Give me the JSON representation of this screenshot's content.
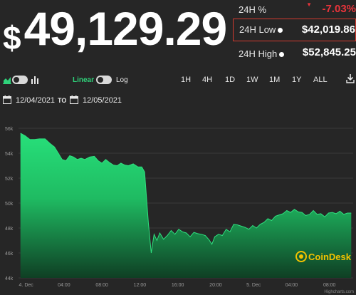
{
  "price": {
    "currency_symbol": "$",
    "value": "49,129.29"
  },
  "stats": {
    "change_label": "24H %",
    "change_value": "-7.03%",
    "low_label": "24H Low",
    "low_value": "$42,019.86",
    "high_label": "24H High",
    "high_value": "$52,845.25"
  },
  "controls": {
    "linear_label": "Linear",
    "log_label": "Log",
    "ranges": [
      "1H",
      "4H",
      "1D",
      "1W",
      "1M",
      "1Y",
      "ALL"
    ]
  },
  "dates": {
    "from": "12/04/2021",
    "to_label": "TO",
    "to": "12/05/2021"
  },
  "colors": {
    "accent": "#2fd27a",
    "negative": "#e8343b",
    "highlight_border": "#d23a2f",
    "background": "#262626"
  },
  "icons": [
    "area-chart-icon",
    "bar-chart-icon",
    "calendar-icon",
    "download-icon"
  ],
  "chart_data": {
    "type": "area",
    "y_tick_labels": [
      "56k",
      "54k",
      "52k",
      "50k",
      "48k",
      "46k",
      "44k"
    ],
    "x_tick_labels": [
      "4. Dec",
      "04:00",
      "08:00",
      "12:00",
      "16:00",
      "20:00",
      "5. Dec",
      "04:00",
      "08:00"
    ],
    "x_hours": [
      0,
      4,
      8,
      12,
      16,
      20,
      24,
      28,
      32
    ],
    "ylim": [
      44000,
      56000
    ],
    "xlim": [
      -0.8,
      34.5
    ],
    "grid": true,
    "watermark": "CoinDesk",
    "credits": "Highcharts.com",
    "series": [
      {
        "x": [
          -0.6,
          -0.1,
          0.4,
          0.9,
          1.4,
          2.0,
          2.5,
          3.0,
          3.4,
          3.8,
          4.2,
          4.6,
          5.0,
          5.4,
          5.8,
          6.2,
          6.7,
          7.2,
          7.6,
          8.0,
          8.4,
          8.8,
          9.2,
          9.6,
          10.0,
          10.4,
          10.8,
          11.3,
          11.8,
          12.2,
          12.5,
          12.7,
          12.9,
          13.2,
          13.5,
          13.8,
          14.1,
          14.5,
          14.9,
          15.3,
          15.7,
          16.1,
          16.5,
          16.9,
          17.3,
          17.7,
          18.1,
          18.5,
          18.9,
          19.3,
          19.6,
          19.9,
          20.3,
          20.7,
          21.1,
          21.5,
          21.9,
          22.3,
          22.7,
          23.1,
          23.5,
          23.9,
          24.3,
          24.7,
          25.1,
          25.5,
          25.9,
          26.3,
          26.7,
          27.1,
          27.5,
          27.9,
          28.3,
          28.7,
          29.1,
          29.5,
          29.9,
          30.3,
          30.7,
          31.1,
          31.5,
          31.9,
          32.3,
          32.7,
          33.1,
          33.5,
          33.9,
          34.3
        ],
        "values": [
          55600,
          55400,
          55100,
          55100,
          55150,
          55150,
          54800,
          54500,
          54000,
          53500,
          53400,
          53800,
          53700,
          53500,
          53600,
          53500,
          53700,
          53750,
          53400,
          53200,
          53500,
          53250,
          53050,
          53000,
          53200,
          53050,
          53000,
          53150,
          52900,
          52900,
          52500,
          50500,
          48400,
          46000,
          47500,
          47000,
          47600,
          47100,
          47400,
          47800,
          47500,
          47900,
          47700,
          47600,
          47300,
          47650,
          47550,
          47500,
          47400,
          47050,
          46700,
          47300,
          47500,
          47400,
          47900,
          47700,
          48300,
          48250,
          48150,
          48050,
          47900,
          48200,
          48000,
          48300,
          48450,
          48750,
          48600,
          48950,
          49050,
          49150,
          49400,
          49250,
          49500,
          49300,
          49250,
          49000,
          49100,
          49400,
          49100,
          49150,
          48900,
          49200,
          49250,
          49150,
          49350,
          49100,
          49200,
          49200
        ]
      }
    ]
  }
}
